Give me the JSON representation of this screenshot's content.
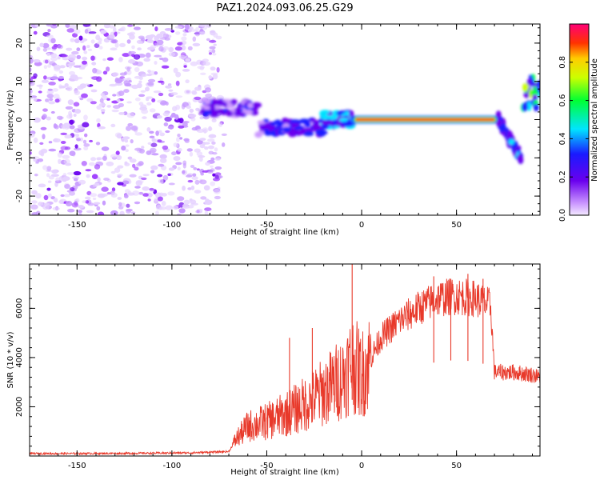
{
  "figure_title": "PAZ1.2024.093.06.25.G29",
  "chart_data": [
    {
      "type": "heatmap",
      "xlabel": "Height of straight line (km)",
      "ylabel": "Frequency (Hz)",
      "xlim": [
        -175,
        94
      ],
      "ylim": [
        -25,
        25
      ],
      "xticks": [
        -150,
        -100,
        -50,
        0,
        50
      ],
      "yticks": [
        -20,
        -10,
        0,
        10,
        20
      ],
      "colorbar": {
        "label": "Normalized spectral amplitude",
        "range": [
          0,
          1
        ],
        "ticks": [
          "0.0",
          "0.2",
          "0.4",
          "0.6",
          "0.8"
        ],
        "colormap": "rainbow (purple-blue-cyan-green-yellow-red-magenta)"
      },
      "features": [
        {
          "segment": "noise",
          "x_range": [
            -175,
            -75
          ],
          "freq_range": [
            -25,
            25
          ],
          "amplitude": 0.05
        },
        {
          "segment": "onset",
          "x_range": [
            -83,
            -55
          ],
          "freq_center": 3,
          "amplitude": 0.25
        },
        {
          "segment": "dip",
          "x_range": [
            -55,
            -20
          ],
          "freq_center": -2,
          "amplitude": 0.3
        },
        {
          "segment": "rise",
          "x_range": [
            -20,
            -5
          ],
          "freq_center": 0,
          "amplitude": 0.4
        },
        {
          "segment": "carrier",
          "x_range": [
            -5,
            72
          ],
          "freq_center": 0,
          "amplitude": 0.95
        },
        {
          "segment": "drop",
          "x_range": [
            72,
            84
          ],
          "freq_center": -8,
          "amplitude": 0.3
        },
        {
          "segment": "edge",
          "x_range": [
            85,
            94
          ],
          "freq_center": 7,
          "amplitude": 0.5
        }
      ]
    },
    {
      "type": "line",
      "xlabel": "Height of straight line (km)",
      "ylabel": "SNR (10 * v/v)",
      "xlim": [
        -175,
        94
      ],
      "ylim": [
        0,
        7800
      ],
      "xticks": [
        -150,
        -100,
        -50,
        0,
        50
      ],
      "yticks": [
        2000,
        4000,
        6000
      ],
      "color": "#e8392a",
      "profile": [
        {
          "x": -175,
          "y": 100
        },
        {
          "x": -150,
          "y": 100
        },
        {
          "x": -120,
          "y": 110
        },
        {
          "x": -90,
          "y": 130
        },
        {
          "x": -70,
          "y": 180
        },
        {
          "x": -66,
          "y": 700
        },
        {
          "x": -60,
          "y": 1200
        },
        {
          "x": -50,
          "y": 1400
        },
        {
          "x": -40,
          "y": 1700
        },
        {
          "x": -30,
          "y": 2100
        },
        {
          "x": -20,
          "y": 2600
        },
        {
          "x": -10,
          "y": 3200
        },
        {
          "x": -5,
          "y": 3800
        },
        {
          "x": 0,
          "y": 3300
        },
        {
          "x": 5,
          "y": 4000
        },
        {
          "x": 10,
          "y": 4800
        },
        {
          "x": 20,
          "y": 5500
        },
        {
          "x": 30,
          "y": 6000
        },
        {
          "x": 40,
          "y": 6400
        },
        {
          "x": 50,
          "y": 6500
        },
        {
          "x": 60,
          "y": 6400
        },
        {
          "x": 68,
          "y": 6100
        },
        {
          "x": 70,
          "y": 3400
        },
        {
          "x": 80,
          "y": 3400
        },
        {
          "x": 90,
          "y": 3300
        },
        {
          "x": 94,
          "y": 3200
        }
      ],
      "spikes": [
        {
          "x": -5,
          "y": 7800
        },
        {
          "x": -26,
          "y": 5200
        },
        {
          "x": -38,
          "y": 4800
        },
        {
          "x": 38,
          "y": 7300
        },
        {
          "x": 47,
          "y": 7200
        },
        {
          "x": 56,
          "y": 7400
        },
        {
          "x": 64,
          "y": 7200
        }
      ]
    }
  ]
}
